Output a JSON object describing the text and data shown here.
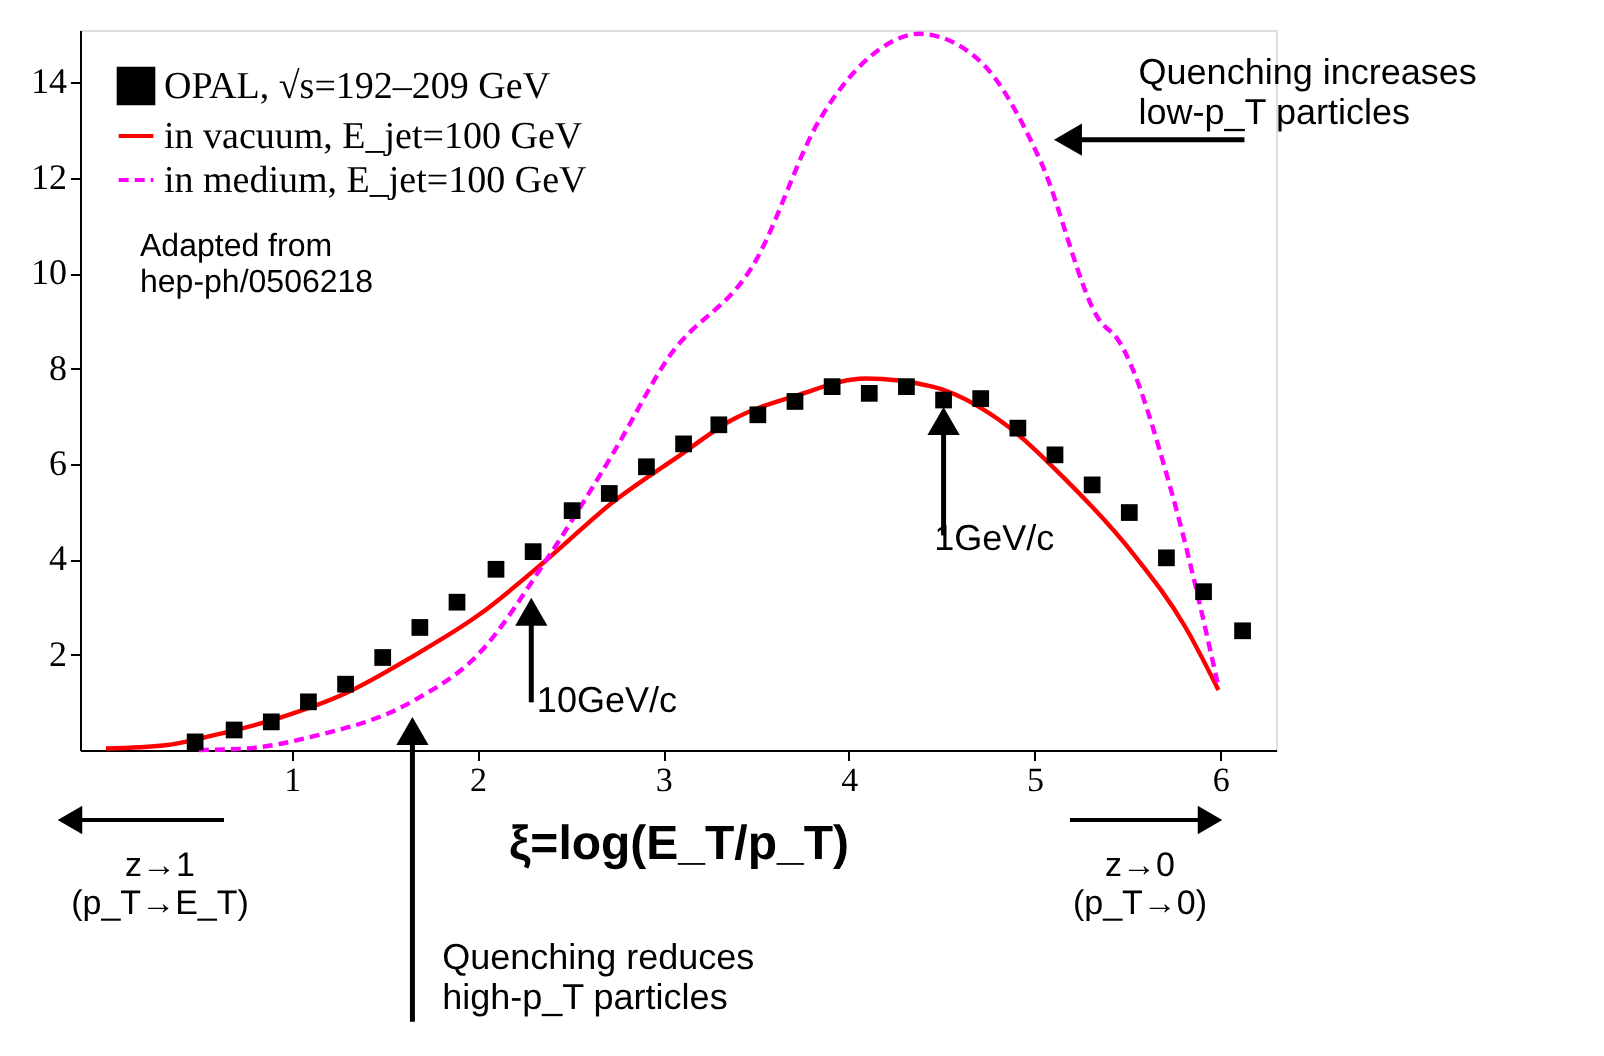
{
  "chart_data": {
    "type": "line",
    "xlabel": "ξ=log(E_T/p_T)",
    "xlim": [
      -0.14,
      6.3
    ],
    "xticks": [
      1,
      2,
      3,
      4,
      5,
      6
    ],
    "ylim": [
      0,
      15.1
    ],
    "yticks": [
      2,
      4,
      6,
      8,
      10,
      12,
      14
    ],
    "grid": false,
    "legend": "top left",
    "series": [
      {
        "name": "OPAL, √s=192–209 GeV",
        "type": "scatter",
        "marker": "square",
        "color": "#000000",
        "x": [
          0.48,
          0.69,
          0.89,
          1.09,
          1.29,
          1.49,
          1.69,
          1.89,
          2.1,
          2.3,
          2.51,
          2.71,
          2.91,
          3.11,
          3.3,
          3.51,
          3.71,
          3.91,
          4.11,
          4.31,
          4.51,
          4.71,
          4.91,
          5.11,
          5.31,
          5.51,
          5.71,
          5.91,
          6.12
        ],
        "values": [
          0.17,
          0.42,
          0.59,
          1.01,
          1.38,
          1.94,
          2.57,
          3.1,
          3.79,
          4.16,
          5.02,
          5.38,
          5.94,
          6.42,
          6.82,
          7.03,
          7.31,
          7.62,
          7.48,
          7.62,
          7.34,
          7.37,
          6.75,
          6.19,
          5.56,
          4.98,
          4.03,
          3.32,
          2.5
        ],
        "errors": [
          null,
          null,
          null,
          null,
          null,
          null,
          null,
          null,
          null,
          null,
          null,
          null,
          null,
          0.15,
          0.15,
          0.15,
          0.15,
          0.15,
          0.15,
          0.15,
          0.15,
          0.15,
          0.15,
          0.15,
          0.15,
          0.15,
          0.15,
          0.15,
          0.15
        ]
      },
      {
        "name": "in vacuum, E_jet=100 GeV",
        "line_style": "solid",
        "color": "#ff0000",
        "x": [
          0,
          0.32,
          0.57,
          0.93,
          1.29,
          1.65,
          2.01,
          2.37,
          2.73,
          3.09,
          3.37,
          3.73,
          4.09,
          4.45,
          4.81,
          5.17,
          5.53,
          5.81,
          5.99
        ],
        "values": [
          0.03,
          0.1,
          0.3,
          0.67,
          1.19,
          1.96,
          2.84,
          3.98,
          5.2,
          6.18,
          6.92,
          7.45,
          7.79,
          7.62,
          6.92,
          5.66,
          4.12,
          2.59,
          1.26
        ]
      },
      {
        "name": "in medium, E_jet=100 GeV",
        "line_style": "dashed",
        "color": "#ff00ff",
        "x": [
          0.5,
          0.75,
          1.11,
          1.65,
          2.01,
          2.37,
          2.73,
          3.02,
          3.5,
          3.84,
          4.16,
          4.38,
          4.7,
          5.03,
          5.35,
          5.45,
          5.74,
          5.99
        ],
        "values": [
          0,
          0.03,
          0.28,
          1.02,
          2.03,
          3.98,
          6.22,
          8.18,
          10.27,
          13.2,
          14.68,
          15.02,
          14.47,
          12.37,
          9.01,
          8.6,
          5.38,
          1.33
        ]
      }
    ],
    "annotations": [
      {
        "text": "Quenching increases\nlow-p_T particles",
        "x": 5.18,
        "y": 12.8
      },
      {
        "text": "10GeV/c",
        "x": 2.29,
        "y": 2.9
      },
      {
        "text": "1GeV/c",
        "x": 4.51,
        "y": 6.9
      },
      {
        "text": "Quenching reduces\nhigh-p_T particles",
        "x": 1.65,
        "y": 0.4
      },
      "Adapted from\nhep-ph/0506218",
      "z→1\n(p_T→E_T)",
      "z→0\n(p_T→0)"
    ]
  }
}
